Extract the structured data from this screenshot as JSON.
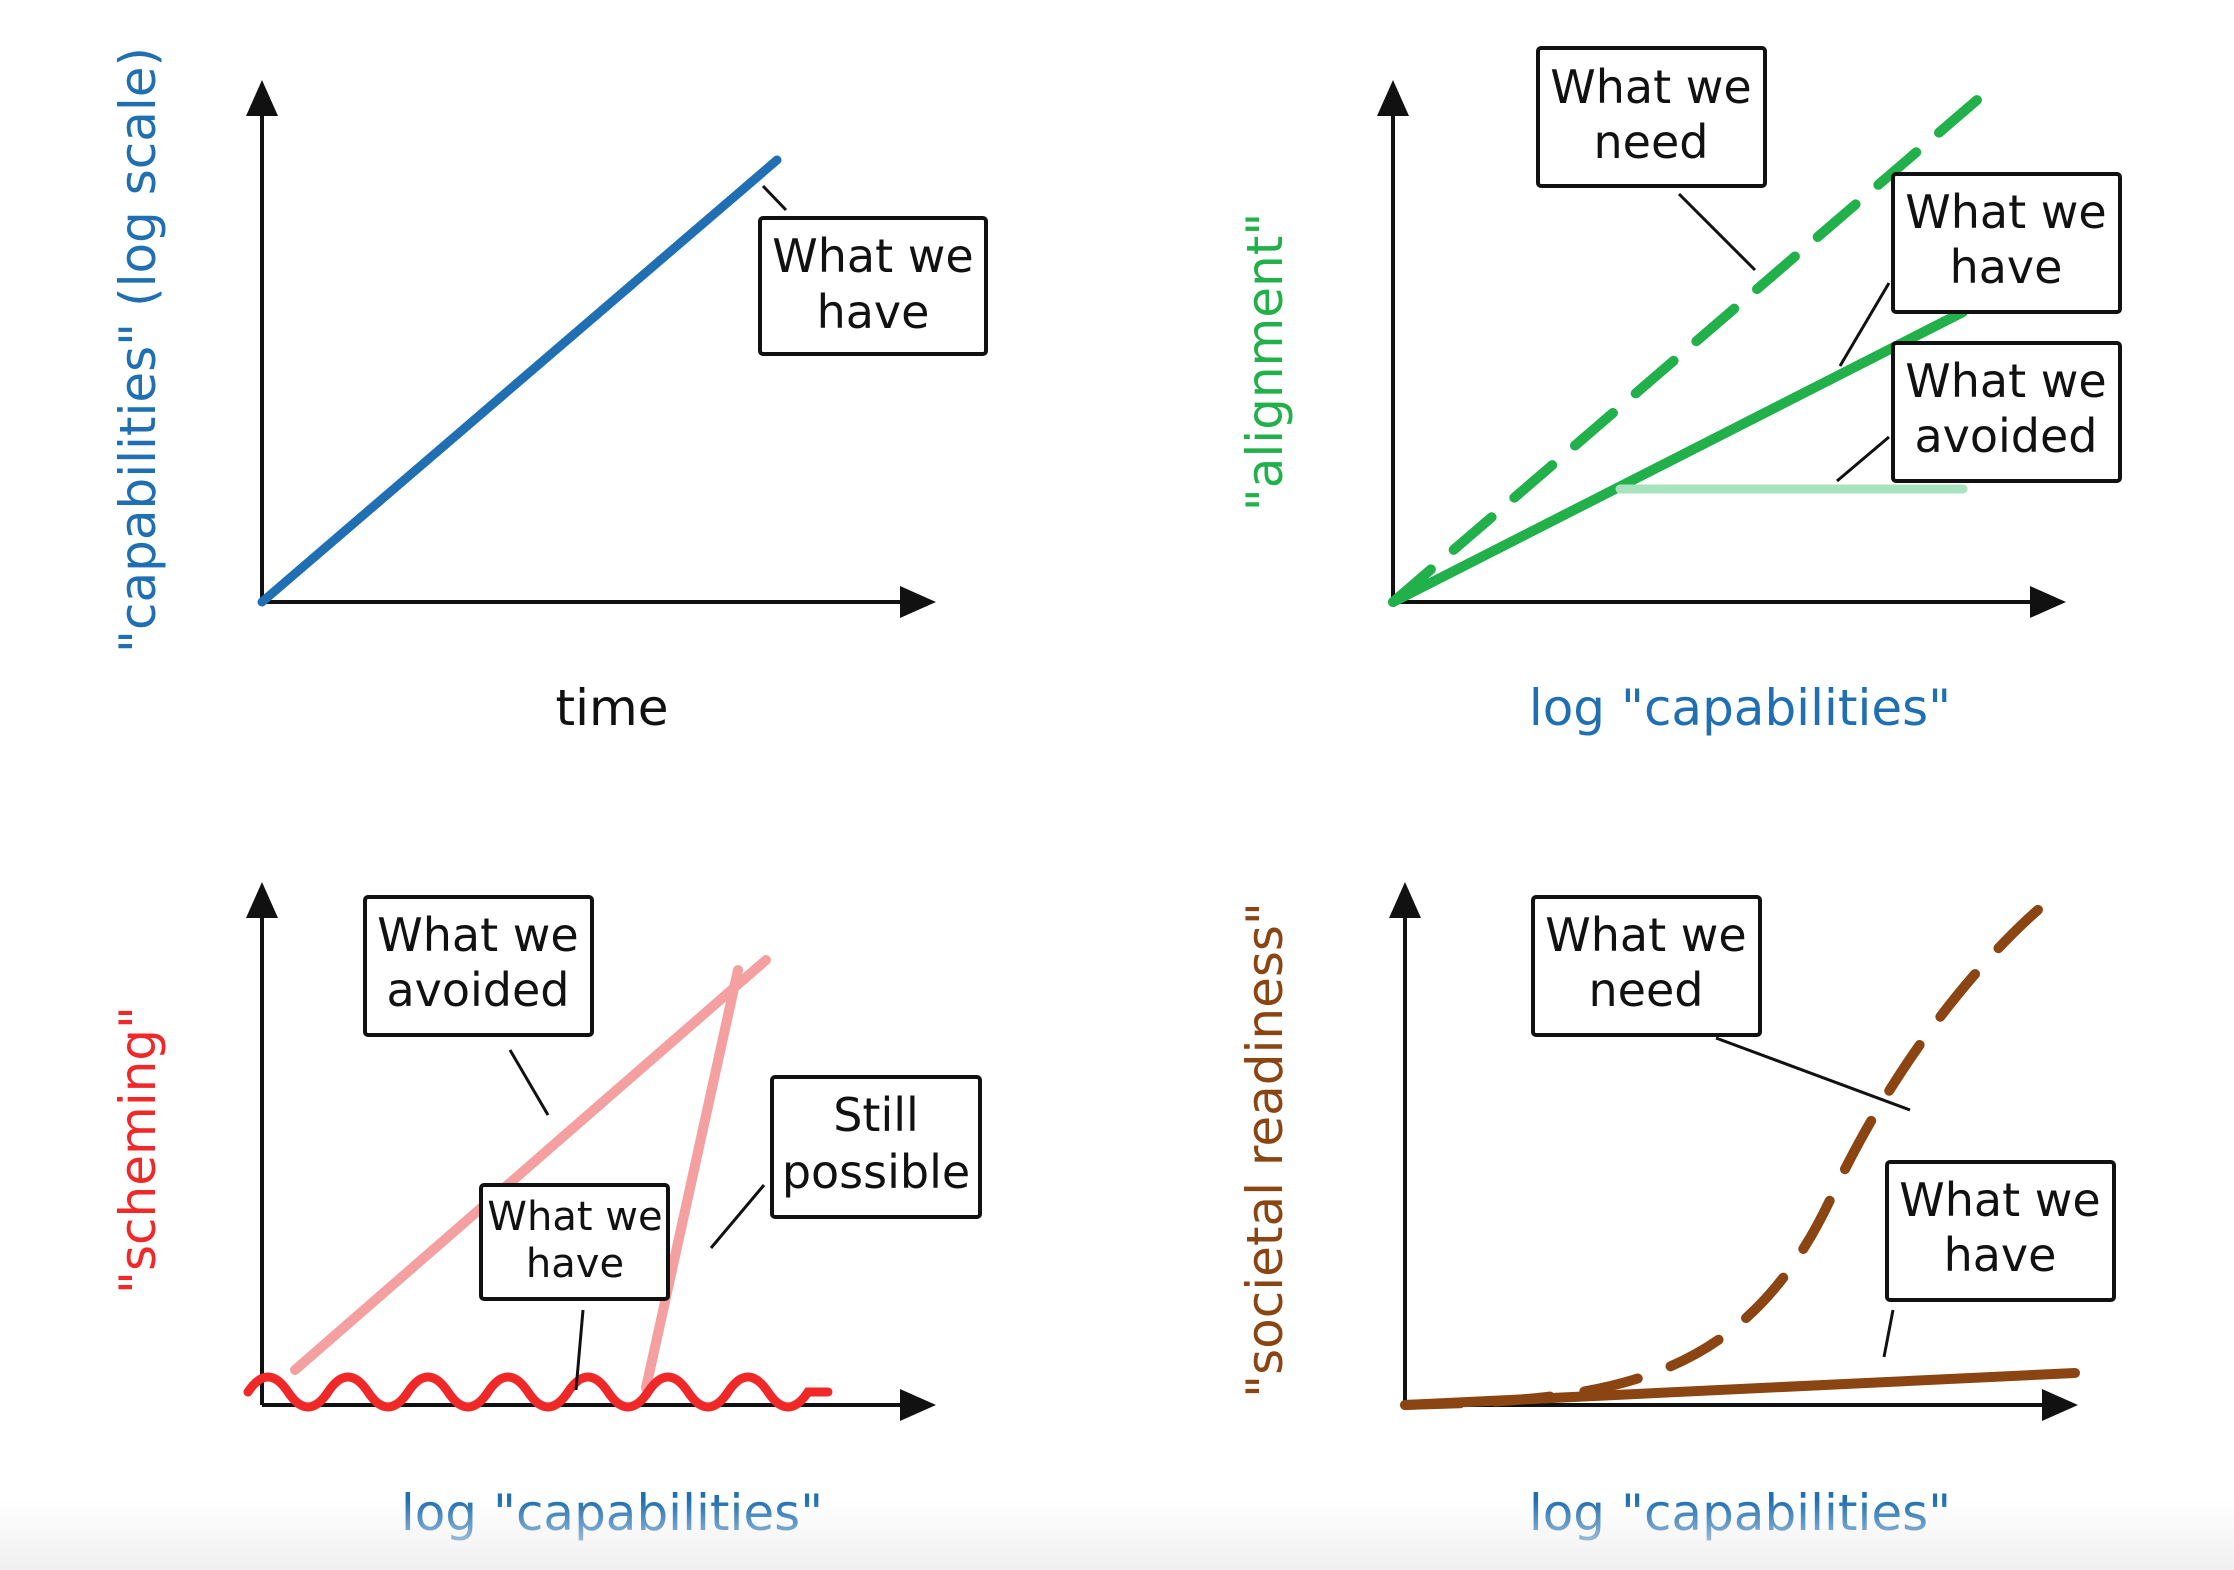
{
  "chart_data": [
    {
      "type": "line",
      "xlabel": "time",
      "ylabel": "\"capabilities\" (log scale)",
      "xlabel_color": "#111111",
      "ylabel_color": "#1f6fb2",
      "series": [
        {
          "label": "What we have",
          "style": "solid",
          "color": "#1f6fb2",
          "x": [
            0,
            1
          ],
          "y": [
            0,
            0.9
          ]
        }
      ]
    },
    {
      "type": "line",
      "xlabel": "log \"capabilities\"",
      "ylabel": "\"alignment\"",
      "xlabel_color": "#1f6fb2",
      "ylabel_color": "#22b04b",
      "series": [
        {
          "label": "What we need",
          "style": "dashed",
          "color": "#22b04b",
          "x": [
            0,
            1
          ],
          "y": [
            0,
            1.0
          ]
        },
        {
          "label": "What we have",
          "style": "solid",
          "color": "#22b04b",
          "x": [
            0,
            1
          ],
          "y": [
            0,
            0.57
          ]
        },
        {
          "label": "What we avoided",
          "style": "solid",
          "color": "#a8e3bd",
          "x": [
            0.38,
            1
          ],
          "y": [
            0.22,
            0.22
          ]
        }
      ]
    },
    {
      "type": "line",
      "xlabel": "log \"capabilities\"",
      "ylabel": "\"scheming\"",
      "xlabel_color": "#1f6fb2",
      "ylabel_color": "#f02828",
      "series": [
        {
          "label": "What we avoided",
          "style": "solid",
          "color": "#f5a0a0",
          "x": [
            0.05,
            1
          ],
          "y": [
            0.07,
            0.9
          ]
        },
        {
          "label": "What we have",
          "style": "wavy",
          "color": "#f02828",
          "x": [
            0,
            1
          ],
          "y": [
            0.03,
            0.03
          ]
        },
        {
          "label": "Still possible",
          "style": "solid",
          "color": "#f5a0a0",
          "x": [
            0.75,
            0.92
          ],
          "y": [
            0.05,
            0.87
          ]
        }
      ],
      "annotations": [
        "What we avoided",
        "What we have",
        "Still possible"
      ]
    },
    {
      "type": "line",
      "xlabel": "log \"capabilities\"",
      "ylabel": "\"societal readiness\"",
      "xlabel_color": "#1f6fb2",
      "ylabel_color": "#8b4513",
      "series": [
        {
          "label": "What we need",
          "style": "dashed",
          "color": "#8b4513",
          "x": [
            0,
            0.3,
            0.55,
            0.75,
            1
          ],
          "y": [
            0,
            0.02,
            0.12,
            0.45,
            1.0
          ]
        },
        {
          "label": "What we have",
          "style": "solid",
          "color": "#8b4513",
          "x": [
            0,
            1
          ],
          "y": [
            0,
            0.07
          ]
        }
      ]
    }
  ],
  "boxes": {
    "p1_have": [
      "What we",
      "have"
    ],
    "p2_need": [
      "What we",
      "need"
    ],
    "p2_have": [
      "What we",
      "have"
    ],
    "p2_avoided": [
      "What we",
      "avoided"
    ],
    "p3_avoided": [
      "What we",
      "avoided"
    ],
    "p3_have": [
      "What we",
      "have"
    ],
    "p3_still": [
      "Still",
      "possible"
    ],
    "p4_need": [
      "What we",
      "need"
    ],
    "p4_have": [
      "What we",
      "have"
    ]
  },
  "colors": {
    "axis": "#111111",
    "blue": "#1f6fb2",
    "green": "#22b04b",
    "light_green": "#a8e3bd",
    "red": "#f02828",
    "pink": "#f5a0a0",
    "brown": "#8b4513"
  }
}
